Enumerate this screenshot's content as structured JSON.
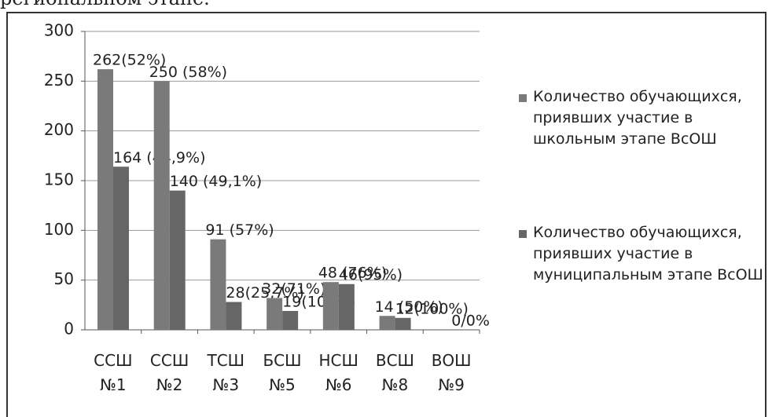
{
  "chart_data": {
    "type": "bar",
    "caption": "региональном этапе.",
    "categories": [
      "ССШ №1",
      "ССШ №2",
      "ТСШ №3",
      "БСШ №5",
      "НСШ №6",
      "ВСШ №8",
      "ВОШ №9"
    ],
    "series": [
      {
        "name": "Количество обучающихся, приявших участие в школьным этапе ВсОШ",
        "color": "#7a7a7a",
        "values": [
          262,
          250,
          91,
          32,
          48,
          14,
          0
        ],
        "value_labels": [
          "262(52%)",
          "250 (58%)",
          "91 (57%)",
          "32(71%)",
          "48 (76%)",
          "14 (50%)",
          null
        ]
      },
      {
        "name": "Количество обучающихся, приявших участие в муниципальным этапе ВсОШ",
        "color": "#666666",
        "values": [
          164,
          140,
          28,
          19,
          46,
          12,
          0
        ],
        "value_labels": [
          "164 (44,9%)",
          "140 (49,1%)",
          "28(25,7%)",
          "19(100%)",
          "46(95%)",
          "12(100%)",
          "0/0%"
        ]
      }
    ],
    "ylim": [
      0,
      300
    ],
    "yticks": [
      0,
      50,
      100,
      150,
      200,
      250,
      300
    ],
    "grid": true,
    "legend": "right"
  }
}
